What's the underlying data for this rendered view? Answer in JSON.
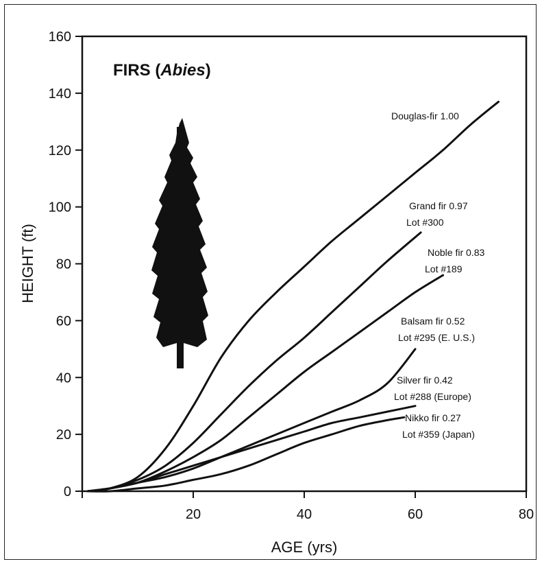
{
  "chart_data": {
    "type": "line",
    "title_prefix": "FIRS (",
    "title_italic": "Abies",
    "title_suffix": ")",
    "xlabel": "AGE (yrs)",
    "ylabel": "HEIGHT (ft)",
    "xlim": [
      0,
      80
    ],
    "ylim": [
      0,
      160
    ],
    "x_ticks": [
      0,
      20,
      40,
      60,
      80
    ],
    "y_ticks": [
      0,
      20,
      40,
      60,
      80,
      100,
      120,
      140,
      160
    ],
    "x_tick_labels": [
      "20",
      "40",
      "60",
      "80"
    ],
    "y_tick_labels": [
      "0",
      "20",
      "40",
      "60",
      "80",
      "100",
      "120",
      "140",
      "160"
    ],
    "grid": false,
    "series": [
      {
        "name": "Douglas-fir 1.00",
        "x": [
          1,
          5,
          10,
          15,
          20,
          25,
          30,
          35,
          40,
          45,
          50,
          55,
          60,
          65,
          70,
          75
        ],
        "y": [
          0,
          1,
          5,
          15,
          30,
          47,
          60,
          70,
          79,
          88,
          96,
          104,
          112,
          120,
          129,
          137
        ]
      },
      {
        "name": "Grand fir 0.97",
        "sublabel": "Lot #300",
        "x": [
          1,
          5,
          10,
          15,
          20,
          25,
          30,
          35,
          40,
          45,
          50,
          55,
          61
        ],
        "y": [
          0,
          1,
          4,
          9,
          17,
          27,
          37,
          46,
          54,
          63,
          72,
          81,
          91
        ]
      },
      {
        "name": "Noble fir 0.83",
        "sublabel": "Lot #189",
        "x": [
          1,
          5,
          10,
          15,
          20,
          25,
          30,
          35,
          40,
          45,
          50,
          55,
          60,
          65
        ],
        "y": [
          0,
          1,
          3,
          7,
          12,
          18,
          26,
          34,
          42,
          49,
          56,
          63,
          70,
          76
        ]
      },
      {
        "name": "Balsam fir 0.52",
        "sublabel": "Lot #295 (E. U.S.)",
        "x": [
          1,
          5,
          10,
          15,
          20,
          25,
          30,
          35,
          40,
          45,
          50,
          55,
          60
        ],
        "y": [
          0,
          1,
          3,
          5,
          8,
          12,
          16,
          20,
          24,
          28,
          32,
          38,
          50
        ]
      },
      {
        "name": "Silver fir 0.42",
        "sublabel": "Lot #288 (Europe)",
        "x": [
          1,
          5,
          10,
          15,
          20,
          25,
          30,
          35,
          40,
          45,
          50,
          55,
          60
        ],
        "y": [
          0,
          1,
          3,
          6,
          9,
          12,
          15,
          18,
          21,
          24,
          26,
          28,
          30
        ]
      },
      {
        "name": "Nikko fir 0.27",
        "sublabel": "Lot #359 (Japan)",
        "x": [
          1,
          5,
          10,
          15,
          20,
          25,
          30,
          35,
          40,
          45,
          50,
          55,
          58
        ],
        "y": [
          0,
          0,
          1,
          2,
          4,
          6,
          9,
          13,
          17,
          20,
          23,
          25,
          26
        ]
      }
    ]
  }
}
